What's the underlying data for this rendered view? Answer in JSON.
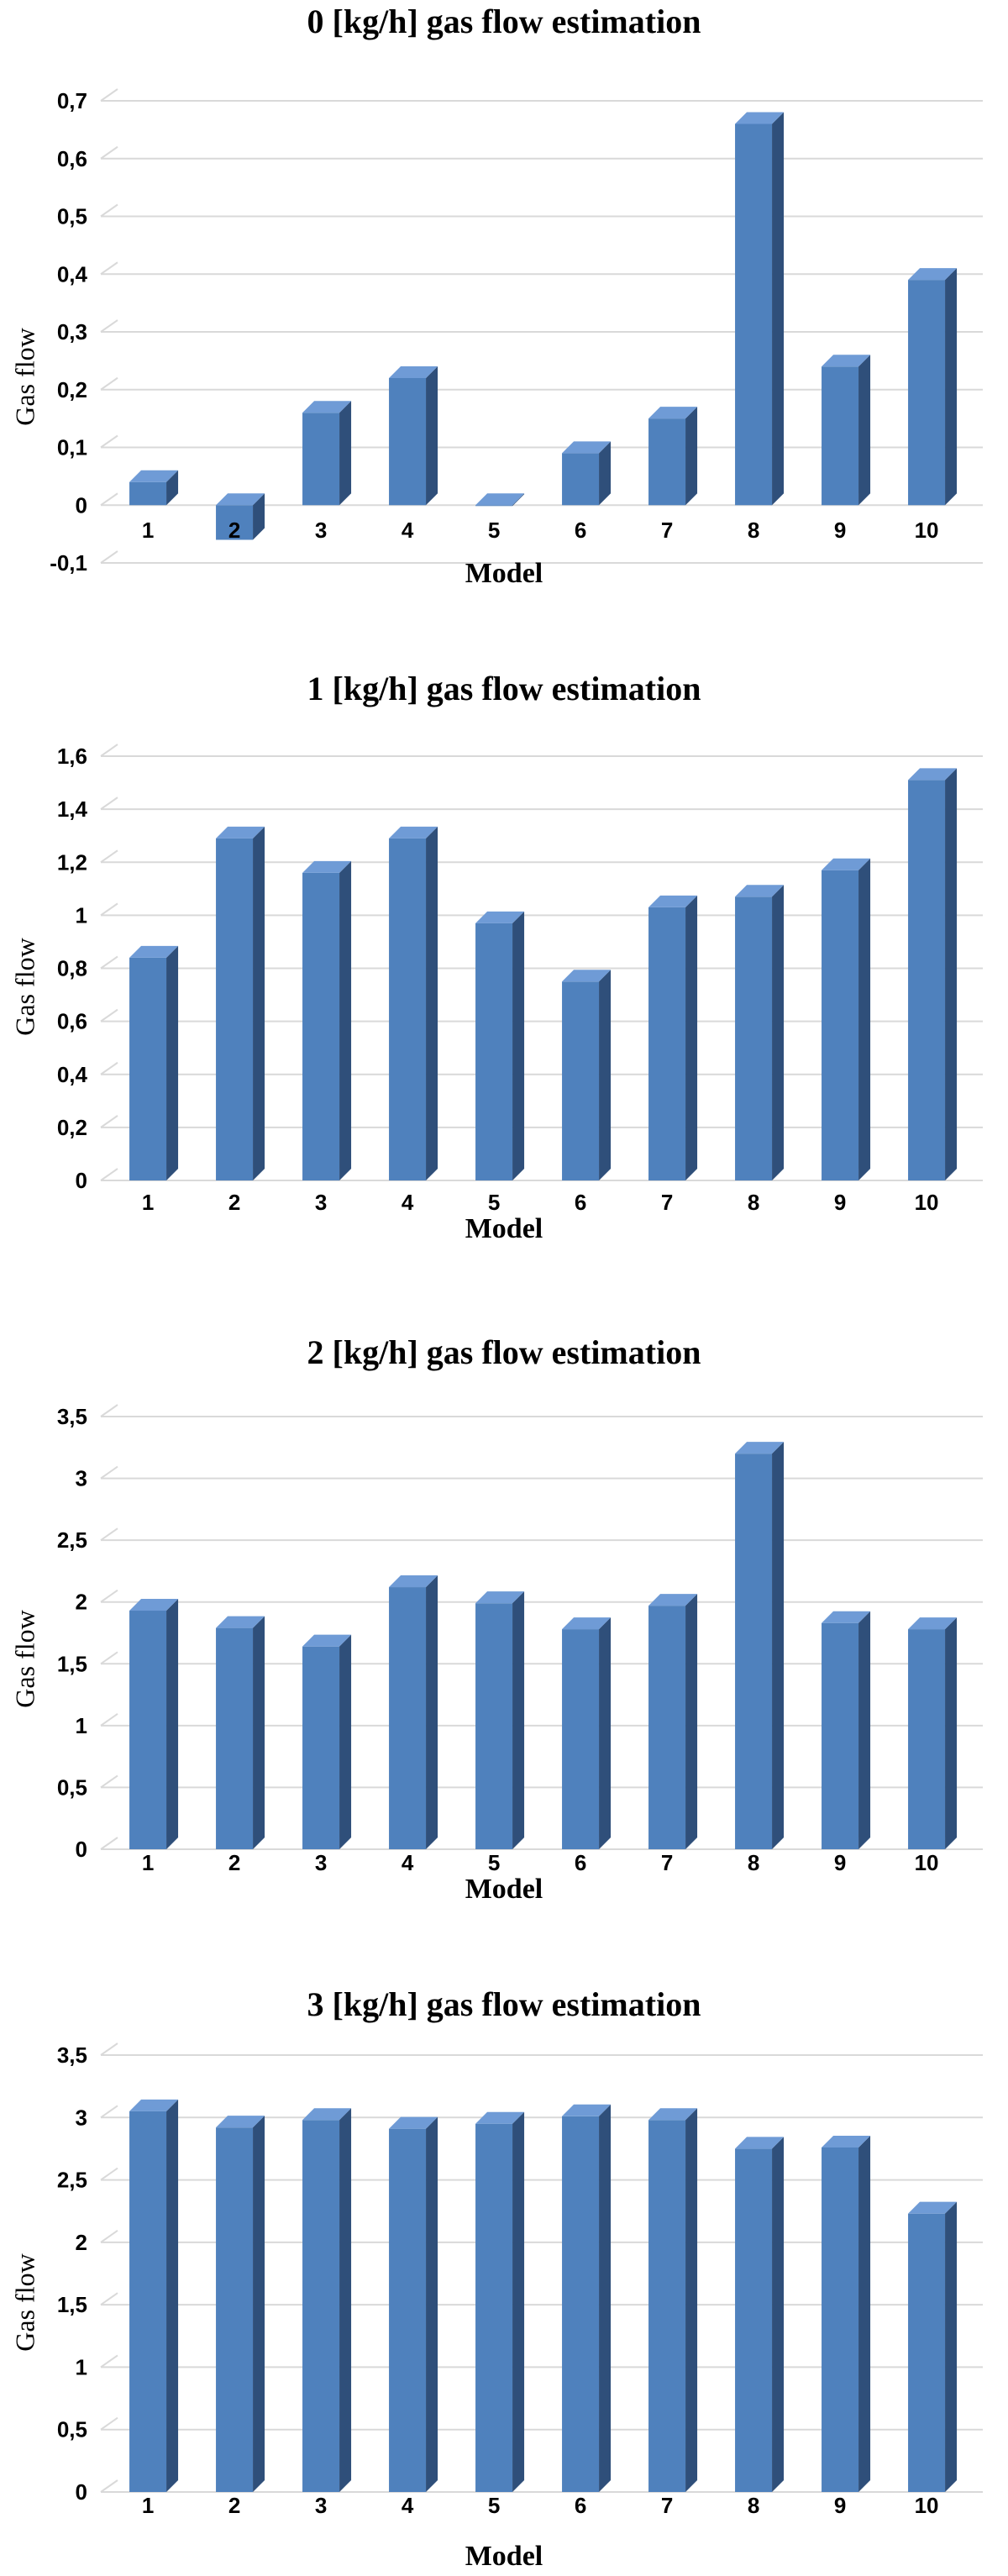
{
  "colors": {
    "bar_front": "#4f81bd",
    "bar_side": "#2f4f7a",
    "bar_top": "#6f9bd6",
    "grid": "#d9d9d9"
  },
  "chart_data": [
    {
      "type": "bar",
      "title": "0 [kg/h] gas flow estimation",
      "xlabel": "Model",
      "ylabel": "Gas flow",
      "categories": [
        "1",
        "2",
        "3",
        "4",
        "5",
        "6",
        "7",
        "8",
        "9",
        "10"
      ],
      "values": [
        0.04,
        -0.06,
        0.16,
        0.22,
        0.0,
        0.09,
        0.15,
        0.66,
        0.24,
        0.39
      ],
      "ylim": [
        -0.1,
        0.7
      ],
      "yticks": [
        "-0,1",
        "0",
        "0,1",
        "0,2",
        "0,3",
        "0,4",
        "0,5",
        "0,6",
        "0,7"
      ],
      "grid": true
    },
    {
      "type": "bar",
      "title": "1 [kg/h] gas flow estimation",
      "xlabel": "Model",
      "ylabel": "Gas flow",
      "categories": [
        "1",
        "2",
        "3",
        "4",
        "5",
        "6",
        "7",
        "8",
        "9",
        "10"
      ],
      "values": [
        0.84,
        1.29,
        1.16,
        1.29,
        0.97,
        0.75,
        1.03,
        1.07,
        1.17,
        1.51
      ],
      "ylim": [
        0,
        1.6
      ],
      "yticks": [
        "0",
        "0,2",
        "0,4",
        "0,6",
        "0,8",
        "1",
        "1,2",
        "1,4",
        "1,6"
      ],
      "grid": true
    },
    {
      "type": "bar",
      "title": "2 [kg/h] gas flow estimation",
      "xlabel": "Model",
      "ylabel": "Gas flow",
      "categories": [
        "1",
        "2",
        "3",
        "4",
        "5",
        "6",
        "7",
        "8",
        "9",
        "10"
      ],
      "values": [
        1.93,
        1.79,
        1.64,
        2.12,
        1.99,
        1.78,
        1.97,
        3.2,
        1.83,
        1.78
      ],
      "ylim": [
        0,
        3.5
      ],
      "yticks": [
        "0",
        "0,5",
        "1",
        "1,5",
        "2",
        "2,5",
        "3",
        "3,5"
      ],
      "grid": true
    },
    {
      "type": "bar",
      "title": "3 [kg/h] gas flow estimation",
      "xlabel": "Model",
      "ylabel": "Gas flow",
      "categories": [
        "1",
        "2",
        "3",
        "4",
        "5",
        "6",
        "7",
        "8",
        "9",
        "10"
      ],
      "values": [
        3.05,
        2.92,
        2.98,
        2.91,
        2.95,
        3.01,
        2.98,
        2.75,
        2.76,
        2.23
      ],
      "ylim": [
        0,
        3.5
      ],
      "yticks": [
        "0",
        "0,5",
        "1",
        "1,5",
        "2",
        "2,5",
        "3",
        "3,5"
      ],
      "grid": true
    }
  ]
}
